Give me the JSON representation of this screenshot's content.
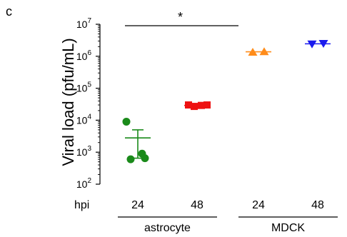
{
  "panel_label": "c",
  "chart_data": {
    "type": "scatter",
    "panel_label": "c",
    "ylabel": "Viral load (pfu/mL)",
    "yscale": "log",
    "ylim": [
      100,
      10000000
    ],
    "yticks": [
      {
        "value": 100,
        "base": "10",
        "exp": "2"
      },
      {
        "value": 1000,
        "base": "10",
        "exp": "3"
      },
      {
        "value": 10000,
        "base": "10",
        "exp": "4"
      },
      {
        "value": 100000,
        "base": "10",
        "exp": "5"
      },
      {
        "value": 1000000,
        "base": "10",
        "exp": "6"
      },
      {
        "value": 10000000,
        "base": "10",
        "exp": "7"
      }
    ],
    "x_row_label": "hpi",
    "categories": [
      "24",
      "48",
      "24",
      "48"
    ],
    "groups": [
      {
        "label": "astrocyte",
        "categories": [
          0,
          1
        ]
      },
      {
        "label": "MDCK",
        "categories": [
          2,
          3
        ]
      }
    ],
    "series": [
      {
        "category": 0,
        "marker": "circle",
        "color": "#1a8a1a",
        "points": [
          9000,
          900,
          600,
          650
        ],
        "mean": 2800,
        "error": [
          650,
          5000
        ]
      },
      {
        "category": 1,
        "marker": "square",
        "color": "#ee1111",
        "points": [
          30000,
          27000,
          29000,
          30000
        ],
        "mean": 29000
      },
      {
        "category": 2,
        "marker": "triangle-up",
        "color": "#ff8c1a",
        "points": [
          1350000,
          1400000
        ],
        "mean": 1380000
      },
      {
        "category": 3,
        "marker": "triangle-down",
        "color": "#1a1aee",
        "points": [
          2400000,
          2500000
        ],
        "mean": 2450000
      }
    ],
    "annotation": {
      "text": "*",
      "from_category": 0,
      "to_category": 2
    },
    "colors": {
      "astrocyte_24": "#1a8a1a",
      "astrocyte_48": "#ee1111",
      "mdck_24": "#ff8c1a",
      "mdck_48": "#1a1aee"
    }
  }
}
